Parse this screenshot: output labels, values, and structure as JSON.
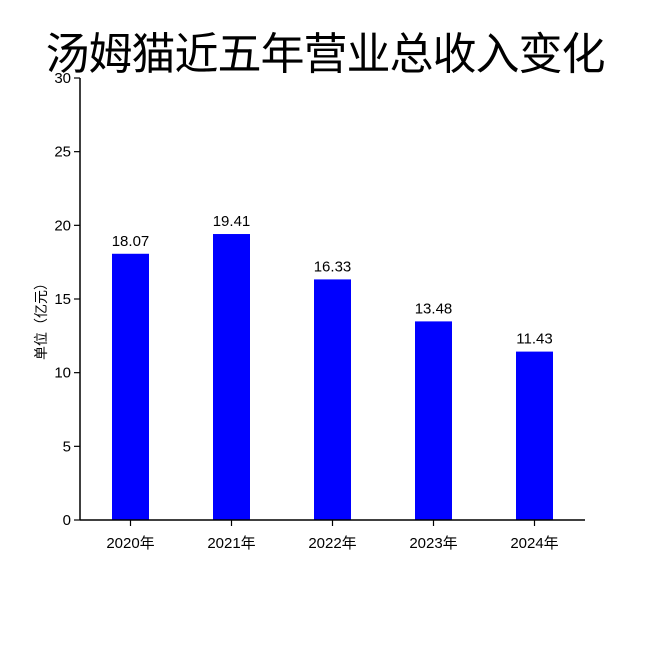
{
  "chart_data": {
    "type": "bar",
    "title": "汤姆猫近五年营业总收入变化",
    "ylabel": "单位（亿元）",
    "xlabel": "",
    "categories": [
      "2020年",
      "2021年",
      "2022年",
      "2023年",
      "2024年"
    ],
    "values": [
      18.07,
      19.41,
      16.33,
      13.48,
      11.43
    ],
    "data_labels": [
      "18.07",
      "19.41",
      "16.33",
      "13.48",
      "11.43"
    ],
    "ylim": [
      0,
      30
    ],
    "yticks": [
      0,
      5,
      10,
      15,
      20,
      25,
      30
    ],
    "bar_color": "#0000ff",
    "grid": false,
    "legend": "none"
  }
}
